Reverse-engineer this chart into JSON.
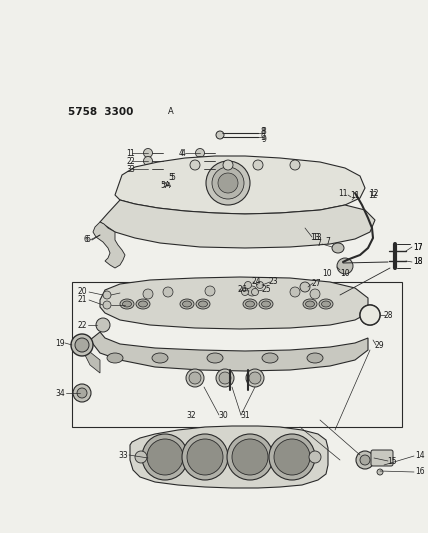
{
  "bg_color": "#f0f0eb",
  "line_color": "#2a2a2a",
  "text_color": "#1a1a1a",
  "title1": "5758  3300",
  "title2": "A",
  "figsize": [
    4.28,
    5.33
  ],
  "dpi": 100
}
